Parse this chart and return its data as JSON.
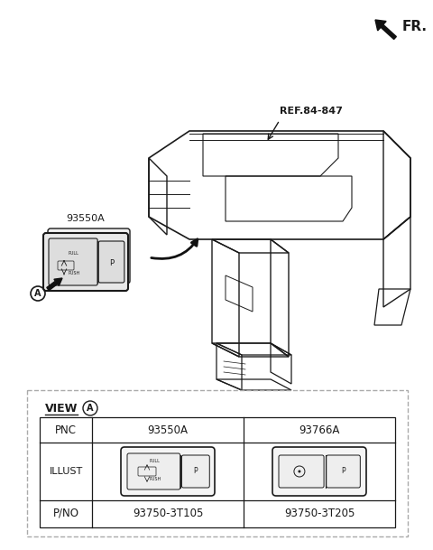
{
  "bg_color": "#ffffff",
  "fr_label": "FR.",
  "ref_label": "REF.84-847",
  "part_label": "93550A",
  "view_label": "VIEW",
  "circle_a_label": "A",
  "table": {
    "col1_pnc": "93550A",
    "col2_pnc": "93766A",
    "col1_pno": "93750-3T105",
    "col2_pno": "93750-3T205"
  },
  "lc": "#1a1a1a",
  "lc_light": "#555555",
  "dash_color": "#999999",
  "fig_w": 4.8,
  "fig_h": 6.09,
  "dpi": 100
}
